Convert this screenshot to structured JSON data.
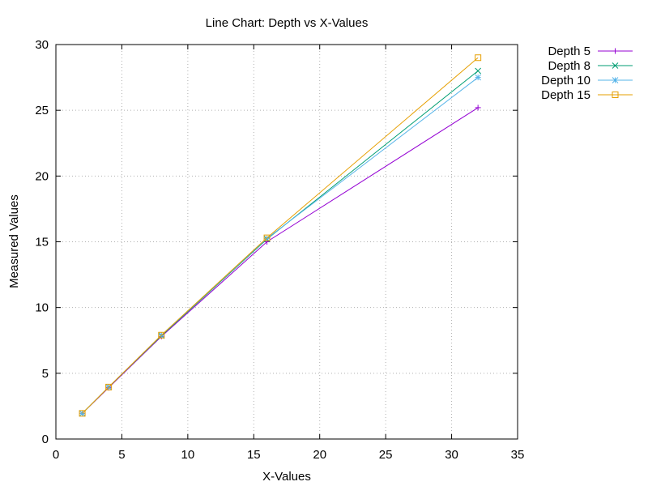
{
  "chart_data": {
    "type": "line",
    "title": "Line Chart: Depth vs X-Values",
    "xlabel": "X-Values",
    "ylabel": "Measured Values",
    "xlim": [
      0,
      35
    ],
    "ylim": [
      0,
      30
    ],
    "xticks": [
      0,
      5,
      10,
      15,
      20,
      25,
      30,
      35
    ],
    "yticks": [
      0,
      5,
      10,
      15,
      20,
      25,
      30
    ],
    "grid": true,
    "legend_position": "outside-top-right",
    "x": [
      2,
      4,
      8,
      16,
      32
    ],
    "series": [
      {
        "name": "Depth 5",
        "values": [
          1.95,
          3.9,
          7.8,
          15.0,
          25.2
        ],
        "color": "#9400d3",
        "marker": "plus"
      },
      {
        "name": "Depth 8",
        "values": [
          1.95,
          3.95,
          7.85,
          15.2,
          28.0
        ],
        "color": "#009e73",
        "marker": "cross"
      },
      {
        "name": "Depth 10",
        "values": [
          1.95,
          3.95,
          7.9,
          15.25,
          27.5
        ],
        "color": "#56b4e9",
        "marker": "star"
      },
      {
        "name": "Depth 15",
        "values": [
          1.95,
          3.95,
          7.9,
          15.3,
          29.0
        ],
        "color": "#e69f00",
        "marker": "square"
      }
    ]
  }
}
